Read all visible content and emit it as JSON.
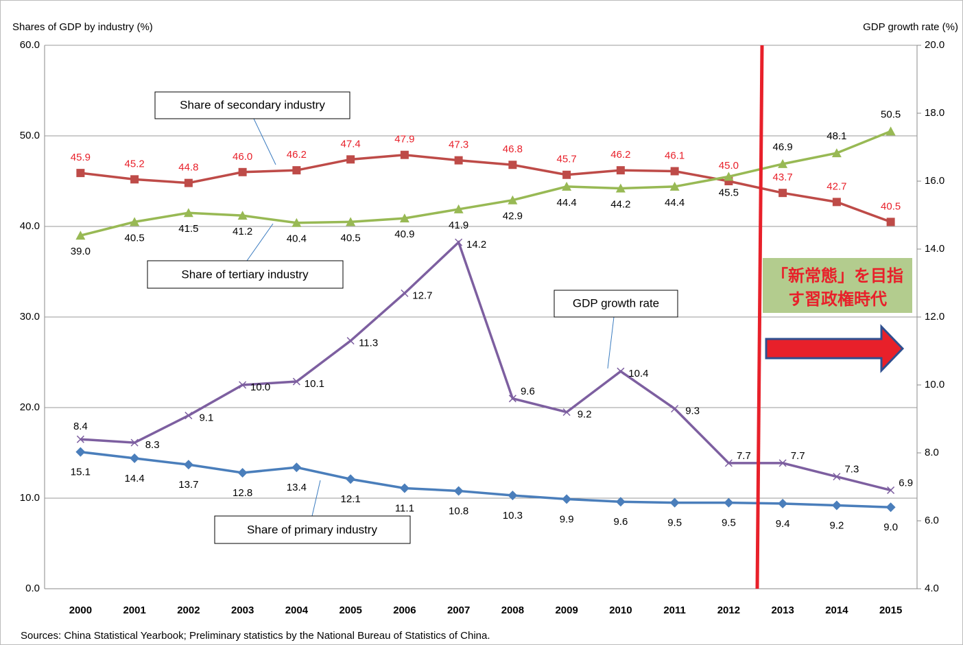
{
  "chart_data": {
    "type": "line",
    "y_label": "Shares of GDP by industry (%)",
    "y2_label": "GDP growth rate (%)",
    "source": "Sources: China Statistical Yearbook; Preliminary statistics by the National Bureau of Statistics of China.",
    "annotations": [
      "Share of secondary industry",
      "Share of tertiary industry",
      "GDP growth rate",
      "Share of primary industry",
      "「新常態」を目指",
      "す習政権時代"
    ],
    "categories": [
      "2000",
      "2001",
      "2002",
      "2003",
      "2004",
      "2005",
      "2006",
      "2007",
      "2008",
      "2009",
      "2010",
      "2011",
      "2012",
      "2013",
      "2014",
      "2015"
    ],
    "ylim": [
      0,
      60
    ],
    "yticks": [
      {
        "value": 0,
        "label": "0.0"
      },
      {
        "value": 10,
        "label": "10.0"
      },
      {
        "value": 20,
        "label": "20.0"
      },
      {
        "value": 30,
        "label": "30.0"
      },
      {
        "value": 40,
        "label": "40.0"
      },
      {
        "value": 50,
        "label": "50.0"
      },
      {
        "value": 60,
        "label": "60.0"
      }
    ],
    "y2lim": [
      4,
      20
    ],
    "y2ticks": [
      {
        "value": 4,
        "label": "4.0"
      },
      {
        "value": 6,
        "label": "6.0"
      },
      {
        "value": 8,
        "label": "8.0"
      },
      {
        "value": 10,
        "label": "10.0"
      },
      {
        "value": 12,
        "label": "12.0"
      },
      {
        "value": 14,
        "label": "14.0"
      },
      {
        "value": 16,
        "label": "16.0"
      },
      {
        "value": 18,
        "label": "18.0"
      },
      {
        "value": 20,
        "label": "20.0"
      }
    ],
    "grid": true,
    "series": [
      {
        "name": "Share of primary industry",
        "color": "#4a7ebb",
        "marker": "diamond",
        "values": [
          15.1,
          14.4,
          13.7,
          12.8,
          13.4,
          12.1,
          11.1,
          10.8,
          10.3,
          9.9,
          9.6,
          9.5,
          9.5,
          9.4,
          9.2,
          9.0
        ],
        "value_labels": [
          "15.1",
          "14.4",
          "13.7",
          "12.8",
          "13.4",
          "12.1",
          "11.1",
          "10.8",
          "10.3",
          "9.9",
          "9.6",
          "9.5",
          "9.5",
          "9.4",
          "9.2",
          "9.0"
        ]
      },
      {
        "name": "Share of secondary industry",
        "color": "#be4b48",
        "marker": "square",
        "label_color": "#e8202a",
        "values": [
          45.9,
          45.2,
          44.8,
          46.0,
          46.2,
          47.4,
          47.9,
          47.3,
          46.8,
          45.7,
          46.2,
          46.1,
          45.0,
          43.7,
          42.7,
          40.5
        ],
        "value_labels": [
          "45.9",
          "45.2",
          "44.8",
          "46.0",
          "46.2",
          "47.4",
          "47.9",
          "47.3",
          "46.8",
          "45.7",
          "46.2",
          "46.1",
          "45.0",
          "43.7",
          "42.7",
          "40.5"
        ]
      },
      {
        "name": "Share of tertiary industry",
        "color": "#98b954",
        "marker": "triangle",
        "values": [
          39.0,
          40.5,
          41.5,
          41.2,
          40.4,
          40.5,
          40.9,
          41.9,
          42.9,
          44.4,
          44.2,
          44.4,
          45.5,
          46.9,
          48.1,
          50.5
        ],
        "value_labels": [
          "39.0",
          "40.5",
          "41.5",
          "41.2",
          "40.4",
          "40.5",
          "40.9",
          "41.9",
          "42.9",
          "44.4",
          "44.2",
          "44.4",
          "45.5",
          "46.9",
          "48.1",
          "50.5"
        ]
      },
      {
        "name": "GDP growth rate",
        "color": "#7d5fa0",
        "marker": "x",
        "axis": "y2",
        "values": [
          8.4,
          8.3,
          9.1,
          10.0,
          10.1,
          11.3,
          12.7,
          14.2,
          9.6,
          9.2,
          10.4,
          9.3,
          7.7,
          7.7,
          7.3,
          6.9
        ],
        "value_labels": [
          "8.4",
          "8.3",
          "9.1",
          "10.0",
          "10.1",
          "11.3",
          "12.7",
          "14.2",
          "9.6",
          "9.2",
          "10.4",
          "9.3",
          "7.7",
          "7.7",
          "7.3",
          "6.9"
        ]
      }
    ]
  }
}
